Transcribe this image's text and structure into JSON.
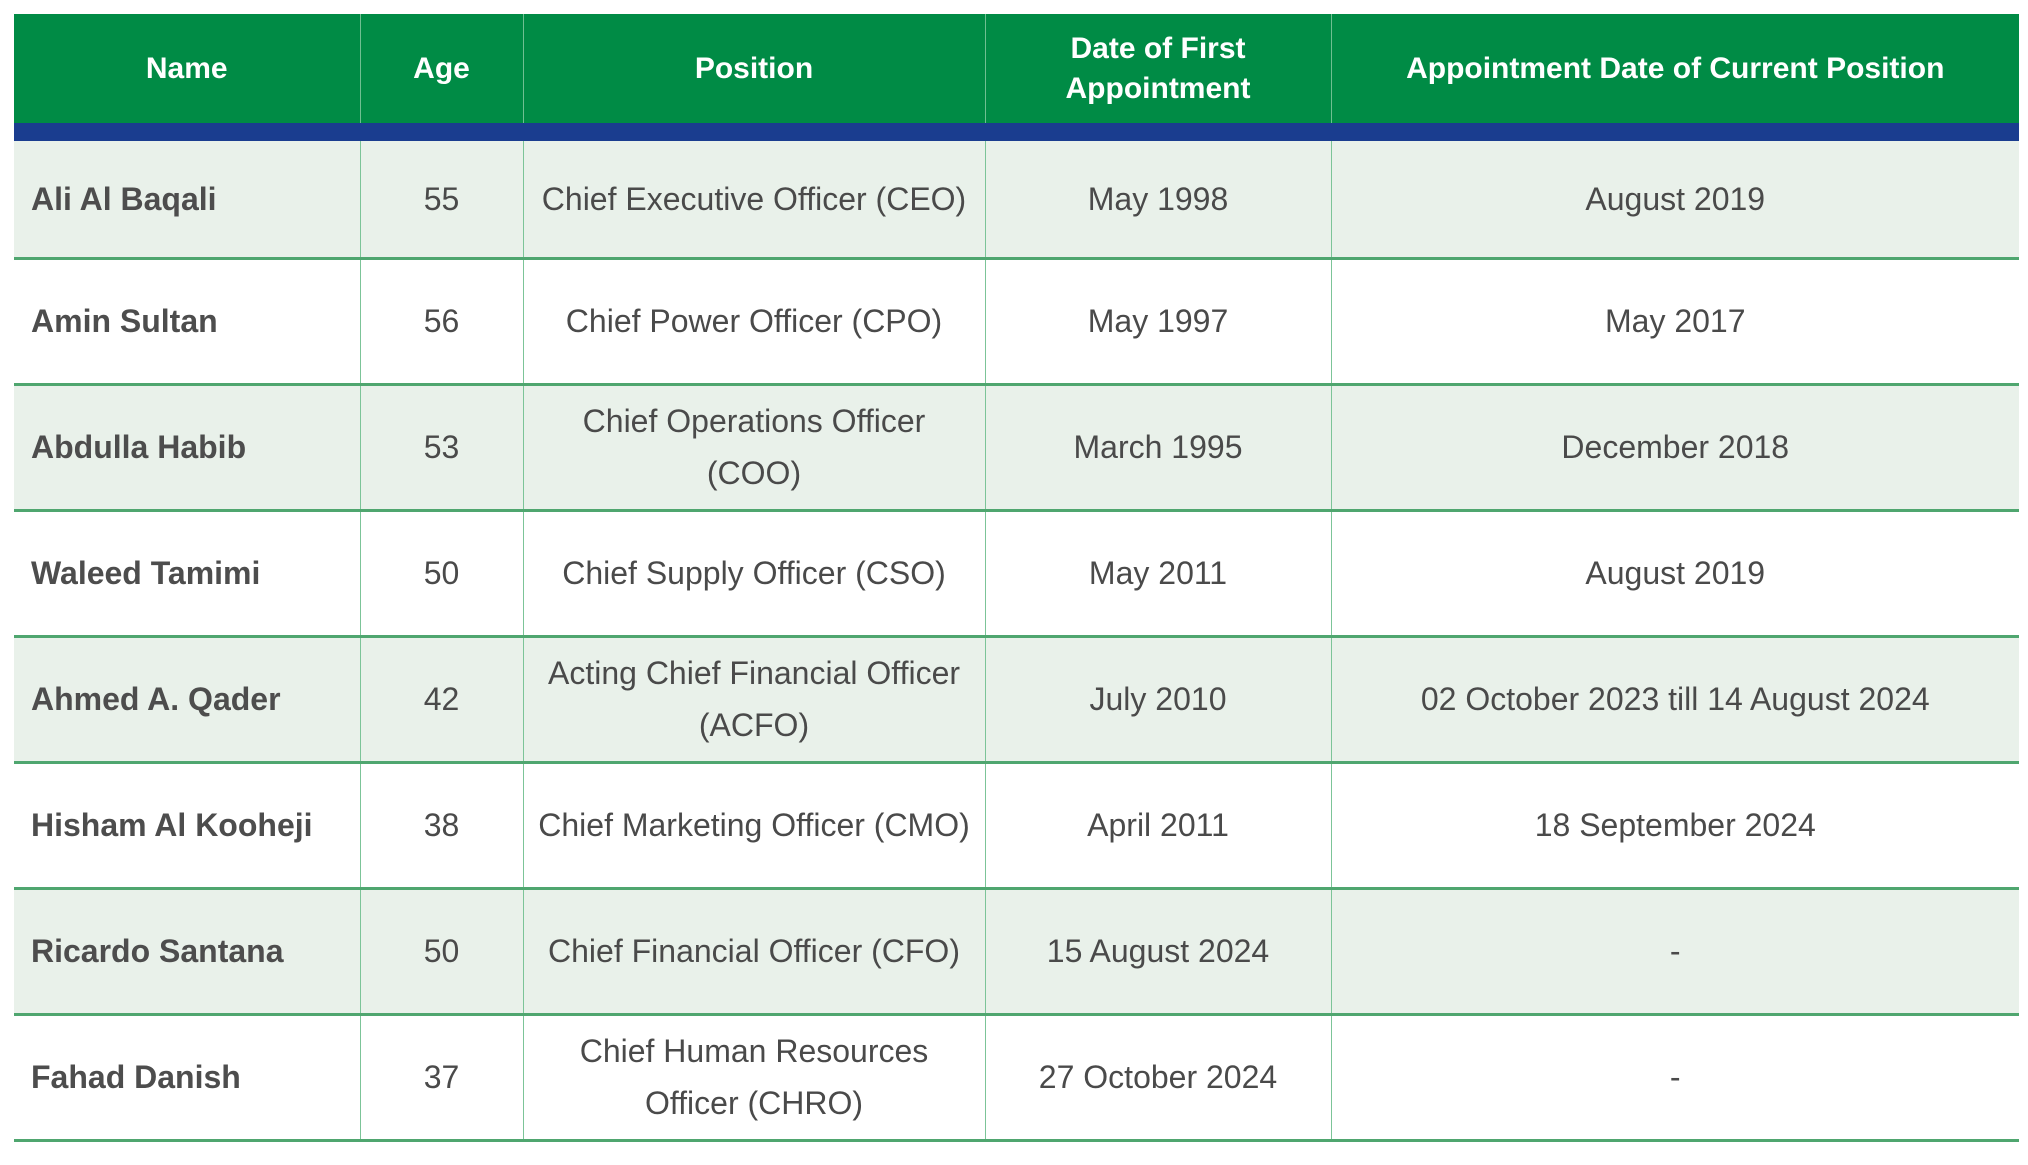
{
  "table": {
    "headers": [
      "Name",
      "Age",
      "Position",
      "Date of First Appointment",
      "Appointment Date of Current Position"
    ],
    "rows": [
      [
        "Ali Al Baqali",
        "55",
        "Chief Executive Officer (CEO)",
        "May 1998",
        "August 2019"
      ],
      [
        "Amin Sultan",
        "56",
        "Chief Power Officer (CPO)",
        "May 1997",
        "May 2017"
      ],
      [
        "Abdulla Habib",
        "53",
        "Chief Operations Officer (COO)",
        "March 1995",
        "December 2018"
      ],
      [
        "Waleed Tamimi",
        "50",
        "Chief Supply Officer (CSO)",
        "May 2011",
        "August 2019"
      ],
      [
        "Ahmed A. Qader",
        "42",
        "Acting Chief Financial Officer (ACFO)",
        "July 2010",
        "02 October 2023 till 14 August 2024"
      ],
      [
        "Hisham Al Kooheji",
        "38",
        "Chief Marketing Officer (CMO)",
        "April 2011",
        "18 September 2024"
      ],
      [
        "Ricardo Santana",
        "50",
        "Chief Financial Officer (CFO)",
        "15 August 2024",
        "-"
      ],
      [
        "Fahad Danish",
        "37",
        "Chief Human Resources Officer (CHRO)",
        "27 October 2024",
        "-"
      ]
    ]
  },
  "colors": {
    "header_bg": "#008b45",
    "header_rule": "#1a3d8f",
    "shaded_row": "#e9f1ea",
    "row_divider": "#4fa66f",
    "text": "#4a4a4a"
  }
}
